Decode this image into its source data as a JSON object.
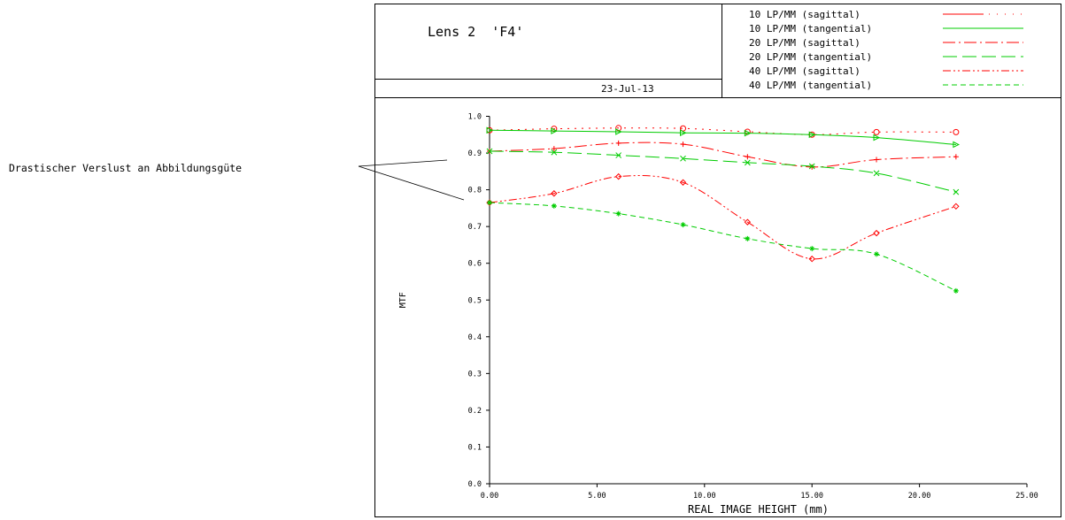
{
  "annotation": "Drastischer Verslust an Abbildungsgüte",
  "header": {
    "title": "Lens 2  'F4'",
    "date": "23-Jul-13"
  },
  "legend": [
    {
      "label": "10 LP/MM (sagittal)",
      "color": "#ff0000",
      "dash": "solid-dot"
    },
    {
      "label": "10 LP/MM (tangential)",
      "color": "#00cc00",
      "dash": "solid"
    },
    {
      "label": "20 LP/MM (sagittal)",
      "color": "#ff0000",
      "dash": "dash-dot-dash"
    },
    {
      "label": "20 LP/MM (tangential)",
      "color": "#00cc00",
      "dash": "long-dash"
    },
    {
      "label": "40 LP/MM (sagittal)",
      "color": "#ff0000",
      "dash": "dash-dot-dot"
    },
    {
      "label": "40 LP/MM (tangential)",
      "color": "#00cc00",
      "dash": "short-dash"
    }
  ],
  "chart_data": {
    "type": "line",
    "xlabel": "REAL IMAGE HEIGHT (mm)",
    "ylabel": "MTF",
    "xlim": [
      0,
      25
    ],
    "ylim": [
      0,
      1
    ],
    "xticks": [
      "0.00",
      "5.00",
      "10.00",
      "15.00",
      "20.00",
      "25.00"
    ],
    "yticks": [
      "0.0",
      "0.1",
      "0.2",
      "0.3",
      "0.4",
      "0.5",
      "0.6",
      "0.7",
      "0.8",
      "0.9",
      "1.0"
    ],
    "x": [
      0,
      3,
      6,
      9,
      12,
      15,
      18,
      21.7
    ],
    "series": [
      {
        "name": "10 LP/MM (sagittal)",
        "color": "#ff0000",
        "marker": "circle",
        "values": [
          0.962,
          0.966,
          0.968,
          0.967,
          0.958,
          0.95,
          0.957,
          0.957
        ]
      },
      {
        "name": "10 LP/MM (tangential)",
        "color": "#00cc00",
        "marker": "triangle",
        "values": [
          0.962,
          0.96,
          0.958,
          0.955,
          0.954,
          0.95,
          0.942,
          0.923
        ]
      },
      {
        "name": "20 LP/MM (sagittal)",
        "color": "#ff0000",
        "marker": "plus",
        "values": [
          0.905,
          0.912,
          0.927,
          0.924,
          0.89,
          0.862,
          0.882,
          0.89
        ]
      },
      {
        "name": "20 LP/MM (tangential)",
        "color": "#00cc00",
        "marker": "x",
        "values": [
          0.905,
          0.902,
          0.894,
          0.885,
          0.874,
          0.864,
          0.845,
          0.794
        ]
      },
      {
        "name": "40 LP/MM (sagittal)",
        "color": "#ff0000",
        "marker": "diamond",
        "values": [
          0.765,
          0.79,
          0.836,
          0.82,
          0.712,
          0.612,
          0.682,
          0.755
        ]
      },
      {
        "name": "40 LP/MM (tangential)",
        "color": "#00cc00",
        "marker": "star",
        "values": [
          0.765,
          0.756,
          0.735,
          0.705,
          0.667,
          0.64,
          0.625,
          0.525
        ]
      }
    ]
  }
}
